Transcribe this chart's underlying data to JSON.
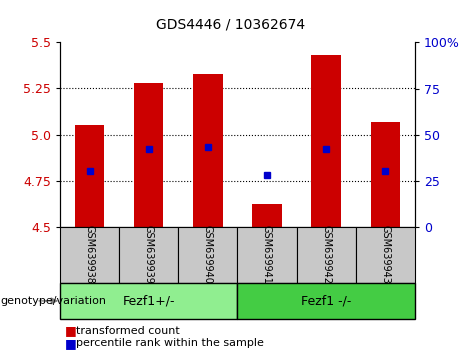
{
  "title": "GDS4446 / 10362674",
  "samples": [
    "GSM639938",
    "GSM639939",
    "GSM639940",
    "GSM639941",
    "GSM639942",
    "GSM639943"
  ],
  "red_values": [
    5.05,
    5.28,
    5.33,
    4.62,
    5.43,
    5.07
  ],
  "blue_percentile": [
    30,
    42,
    43,
    28,
    42,
    30
  ],
  "y_min": 4.5,
  "y_max": 5.5,
  "y_ticks": [
    4.5,
    4.75,
    5.0,
    5.25,
    5.5
  ],
  "right_y_ticks": [
    0,
    25,
    50,
    75,
    100
  ],
  "groups": [
    {
      "label": "Fezf1+/-",
      "indices": [
        0,
        1,
        2
      ],
      "color": "#90EE90"
    },
    {
      "label": "Fezf1 -/-",
      "indices": [
        3,
        4,
        5
      ],
      "color": "#44CC44"
    }
  ],
  "bar_color": "#CC0000",
  "blue_color": "#0000CC",
  "bar_width": 0.5,
  "background_color": "#FFFFFF",
  "plot_bg": "#FFFFFF",
  "label_bg": "#C8C8C8",
  "genotype_label": "genotype/variation",
  "legend_red": "transformed count",
  "legend_blue": "percentile rank within the sample",
  "tick_label_color_left": "#CC0000",
  "tick_label_color_right": "#0000CC",
  "grid_dotted_at": [
    4.75,
    5.0,
    5.25
  ],
  "title_fontsize": 10,
  "sample_fontsize": 7,
  "group_fontsize": 9,
  "legend_fontsize": 8,
  "genotype_fontsize": 8
}
